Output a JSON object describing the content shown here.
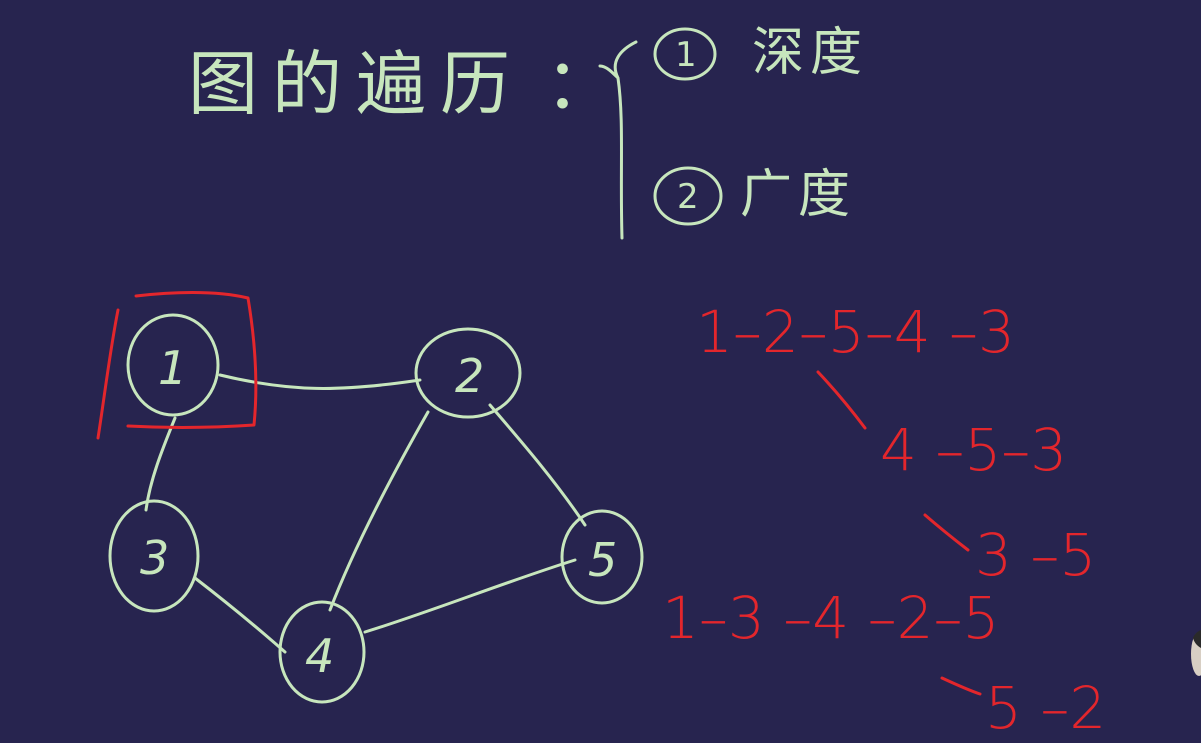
{
  "title": "图的遍历",
  "title_colon": "：",
  "options": [
    {
      "marker": "1",
      "label": "深度"
    },
    {
      "marker": "2",
      "label": "广度"
    }
  ],
  "graph": {
    "nodes": [
      "1",
      "2",
      "3",
      "4",
      "5"
    ],
    "edges": [
      [
        "1",
        "2"
      ],
      [
        "1",
        "3"
      ],
      [
        "2",
        "4"
      ],
      [
        "2",
        "5"
      ],
      [
        "3",
        "4"
      ],
      [
        "4",
        "5"
      ]
    ],
    "highlighted_node": "1"
  },
  "traversals": {
    "dfs_main": "1–2–5–4 –3",
    "dfs_branch_a": "4 –5–3",
    "dfs_branch_b": "3 –5",
    "bfs_main": "1–3 –4 –2–5",
    "bfs_branch": "5 –2"
  },
  "colors": {
    "background": "#27244f",
    "chalk_green": "#c7e6bd",
    "chalk_red": "#e3262c"
  }
}
